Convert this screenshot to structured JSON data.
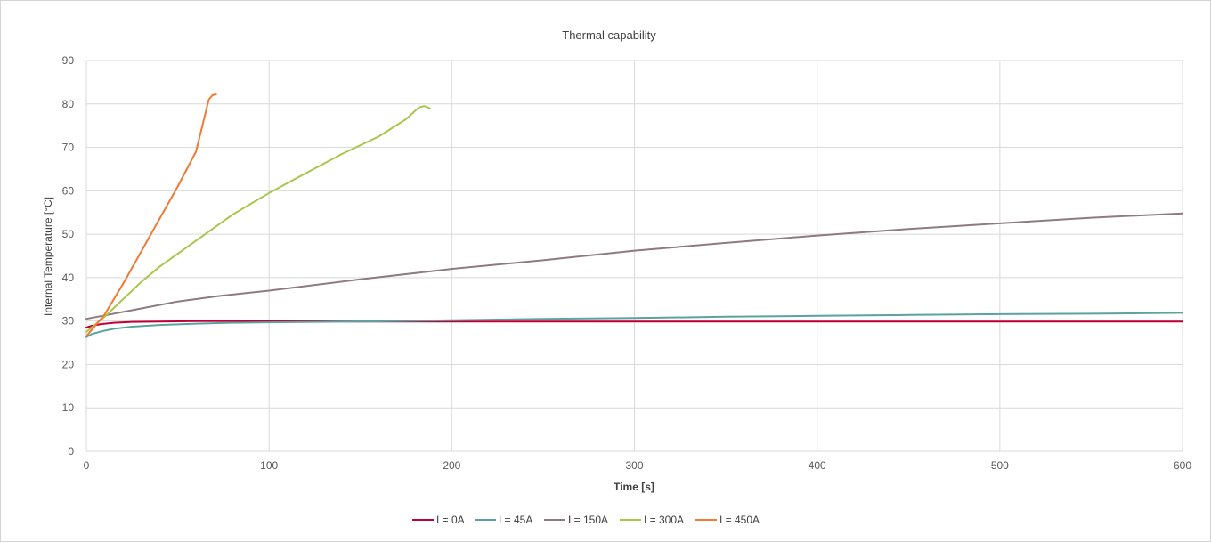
{
  "chart_data": {
    "type": "line",
    "title": "Thermal capability",
    "xlabel": "Time [s]",
    "ylabel": "Internal Temperature [°C]",
    "xlim": [
      0,
      600
    ],
    "ylim": [
      0,
      90
    ],
    "x_ticks": [
      0,
      100,
      200,
      300,
      400,
      500,
      600
    ],
    "y_ticks": [
      0,
      10,
      20,
      30,
      40,
      50,
      60,
      70,
      80,
      90
    ],
    "grid": true,
    "legend_position": "bottom",
    "series": [
      {
        "name": "I = 0A",
        "color": "#c00039",
        "points": [
          [
            0,
            28.5
          ],
          [
            3,
            28.9
          ],
          [
            8,
            29.3
          ],
          [
            15,
            29.6
          ],
          [
            25,
            29.8
          ],
          [
            40,
            29.9
          ],
          [
            60,
            30.0
          ],
          [
            100,
            30.0
          ],
          [
            150,
            29.9
          ],
          [
            200,
            29.9
          ],
          [
            300,
            29.9
          ],
          [
            400,
            29.9
          ],
          [
            500,
            29.9
          ],
          [
            600,
            29.9
          ]
        ]
      },
      {
        "name": "I = 45A",
        "color": "#5ba3a0",
        "points": [
          [
            0,
            26.3
          ],
          [
            3,
            27.0
          ],
          [
            8,
            27.6
          ],
          [
            15,
            28.2
          ],
          [
            25,
            28.7
          ],
          [
            40,
            29.1
          ],
          [
            60,
            29.4
          ],
          [
            80,
            29.6
          ],
          [
            100,
            29.7
          ],
          [
            150,
            29.9
          ],
          [
            200,
            30.2
          ],
          [
            250,
            30.5
          ],
          [
            300,
            30.7
          ],
          [
            350,
            31.0
          ],
          [
            400,
            31.2
          ],
          [
            450,
            31.4
          ],
          [
            500,
            31.6
          ],
          [
            550,
            31.7
          ],
          [
            600,
            31.9
          ]
        ]
      },
      {
        "name": "I = 150A",
        "color": "#8e7a80",
        "points": [
          [
            0,
            30.5
          ],
          [
            25,
            32.5
          ],
          [
            50,
            34.5
          ],
          [
            75,
            35.9
          ],
          [
            100,
            37.0
          ],
          [
            150,
            39.6
          ],
          [
            200,
            42.0
          ],
          [
            250,
            44.0
          ],
          [
            300,
            46.2
          ],
          [
            350,
            48.0
          ],
          [
            400,
            49.7
          ],
          [
            450,
            51.2
          ],
          [
            500,
            52.5
          ],
          [
            550,
            53.8
          ],
          [
            600,
            54.8
          ]
        ]
      },
      {
        "name": "I = 300A",
        "color": "#a8c64a",
        "points": [
          [
            0,
            27.5
          ],
          [
            10,
            31.0
          ],
          [
            20,
            35.0
          ],
          [
            30,
            39.0
          ],
          [
            40,
            42.5
          ],
          [
            50,
            45.5
          ],
          [
            60,
            48.5
          ],
          [
            70,
            51.5
          ],
          [
            80,
            54.5
          ],
          [
            90,
            57.0
          ],
          [
            100,
            59.5
          ],
          [
            120,
            64.0
          ],
          [
            140,
            68.5
          ],
          [
            160,
            72.5
          ],
          [
            175,
            76.5
          ],
          [
            182,
            79.2
          ],
          [
            185,
            79.5
          ],
          [
            188,
            79.0
          ]
        ]
      },
      {
        "name": "I = 450A",
        "color": "#f07a35",
        "points": [
          [
            0,
            26.5
          ],
          [
            10,
            31.5
          ],
          [
            20,
            38.5
          ],
          [
            30,
            46.0
          ],
          [
            40,
            53.5
          ],
          [
            50,
            61.0
          ],
          [
            60,
            69.0
          ],
          [
            67,
            81.0
          ],
          [
            69,
            82.0
          ],
          [
            71,
            82.2
          ]
        ]
      }
    ]
  }
}
